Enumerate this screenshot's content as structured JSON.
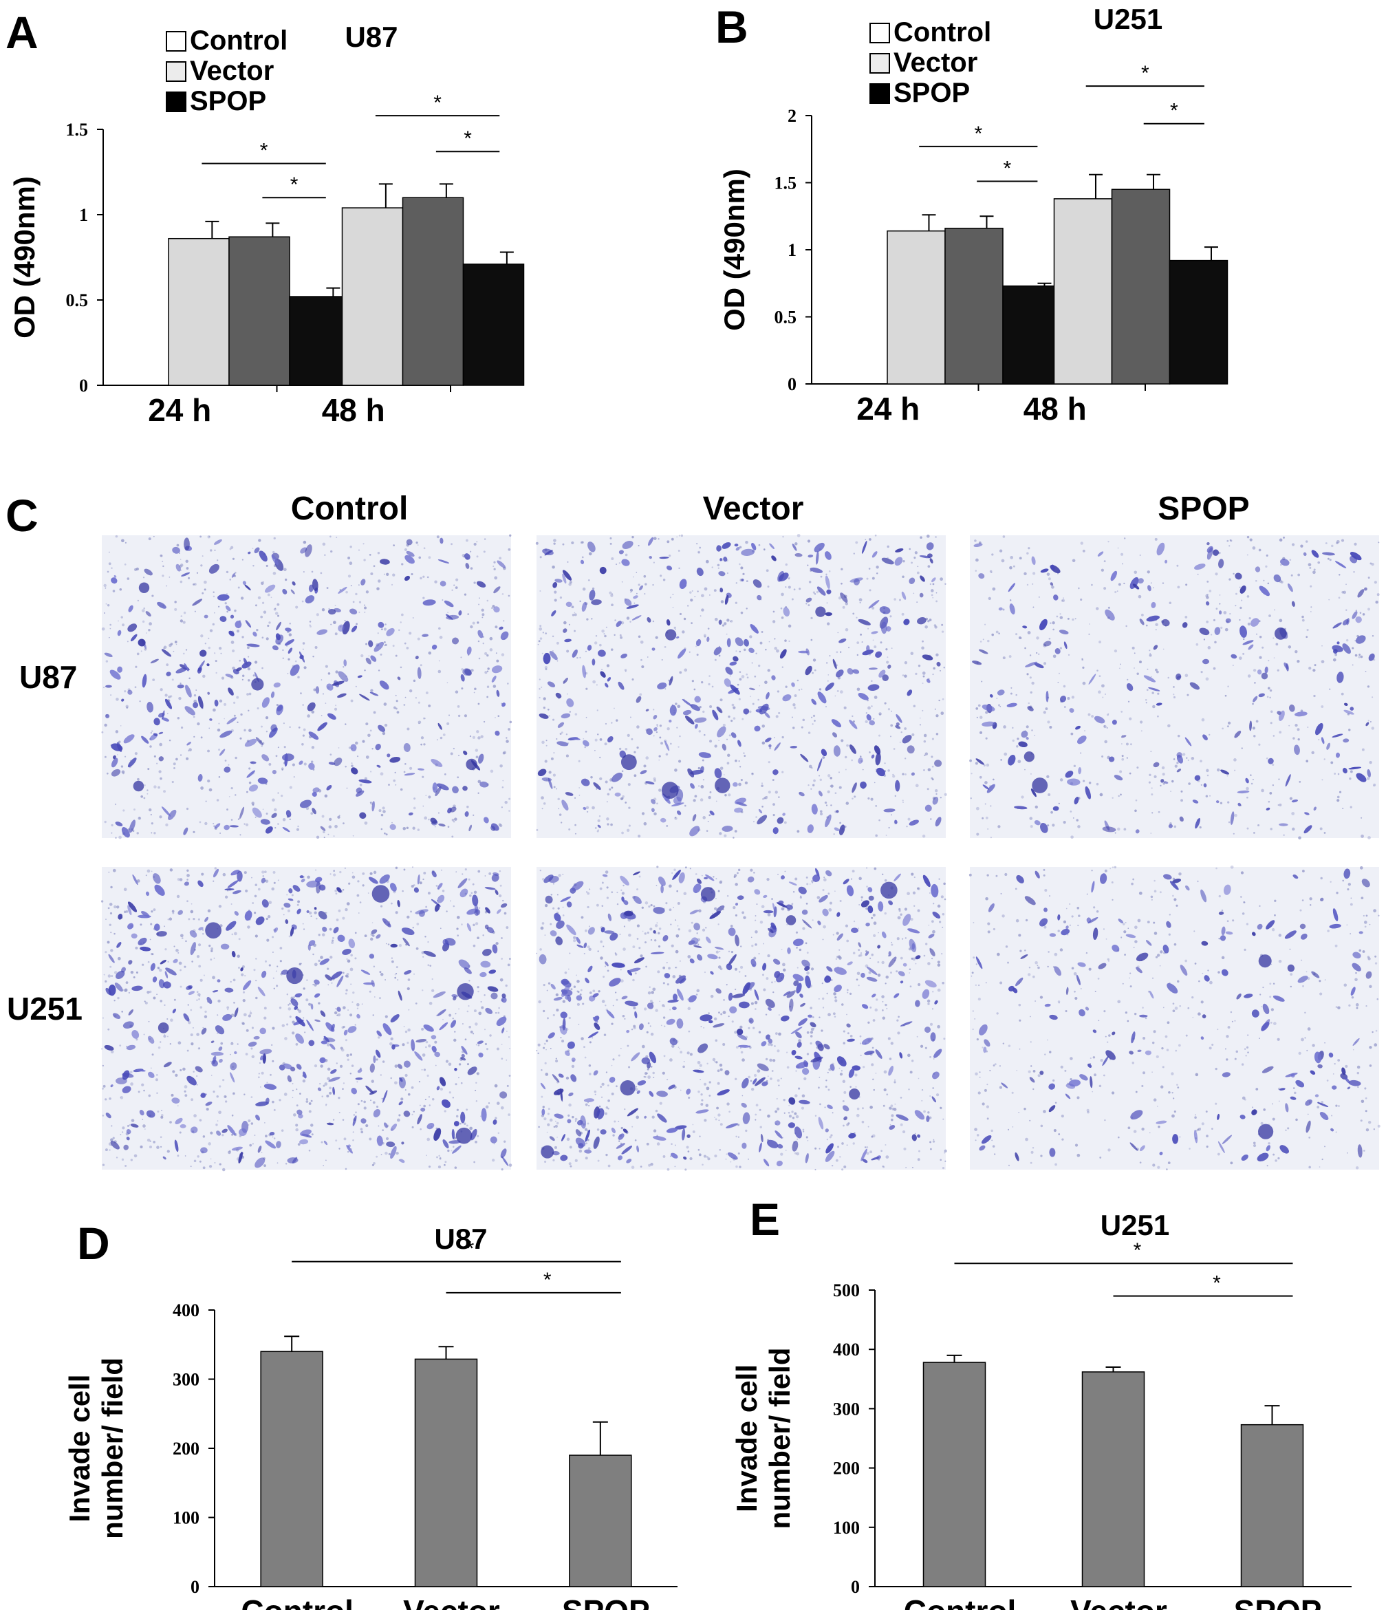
{
  "panel_letters": {
    "A": "A",
    "B": "B",
    "C": "C",
    "D": "D",
    "E": "E"
  },
  "colors": {
    "control": "#d9d9d9",
    "vector": "#5e5e5e",
    "spop": "#0d0d0d",
    "single_bar": "#7f7f7f",
    "stain": "#3d3fb0"
  },
  "legend": {
    "control": "Control",
    "vector": "Vector",
    "spop": "SPOP"
  },
  "significance_mark": "*",
  "micrograph_panel": {
    "column_labels": [
      "Control",
      "Vector",
      "SPOP"
    ],
    "row_labels": [
      "U87",
      "U251"
    ],
    "density": [
      [
        0.7,
        0.75,
        0.45
      ],
      [
        0.95,
        1.0,
        0.35
      ]
    ]
  },
  "chart_data": [
    {
      "panel": "A",
      "type": "bar",
      "title": "U87",
      "ylabel": "OD (490nm)",
      "categories": [
        "24 h",
        "48 h"
      ],
      "ylim": [
        0,
        1.5
      ],
      "yticks": [
        0,
        0.5,
        1,
        1.5
      ],
      "ytick_labels": [
        "0",
        "0.5",
        "1",
        "1.5"
      ],
      "series": [
        {
          "name": "Control",
          "values": [
            0.86,
            1.04
          ],
          "errors": [
            0.1,
            0.14
          ]
        },
        {
          "name": "Vector",
          "values": [
            0.87,
            1.1
          ],
          "errors": [
            0.08,
            0.08
          ]
        },
        {
          "name": "SPOP",
          "values": [
            0.52,
            0.71
          ],
          "errors": [
            0.05,
            0.07
          ]
        }
      ],
      "significance": [
        {
          "category": 0,
          "from": 0,
          "to": 2,
          "y": 1.3
        },
        {
          "category": 0,
          "from": 1,
          "to": 2,
          "y": 1.1
        },
        {
          "category": 1,
          "from": 0,
          "to": 2,
          "y": 1.58
        },
        {
          "category": 1,
          "from": 1,
          "to": 2,
          "y": 1.37
        }
      ]
    },
    {
      "panel": "B",
      "type": "bar",
      "title": "U251",
      "ylabel": "OD (490nm)",
      "categories": [
        "24 h",
        "48 h"
      ],
      "ylim": [
        0,
        2
      ],
      "yticks": [
        0,
        0.5,
        1,
        1.5,
        2
      ],
      "ytick_labels": [
        "0",
        "0.5",
        "1",
        "1.5",
        "2"
      ],
      "series": [
        {
          "name": "Control",
          "values": [
            1.14,
            1.38
          ],
          "errors": [
            0.12,
            0.18
          ]
        },
        {
          "name": "Vector",
          "values": [
            1.16,
            1.45
          ],
          "errors": [
            0.09,
            0.11
          ]
        },
        {
          "name": "SPOP",
          "values": [
            0.73,
            0.92
          ],
          "errors": [
            0.02,
            0.1
          ]
        }
      ],
      "significance": [
        {
          "category": 0,
          "from": 0,
          "to": 2,
          "y": 1.77
        },
        {
          "category": 0,
          "from": 1,
          "to": 2,
          "y": 1.51
        },
        {
          "category": 1,
          "from": 0,
          "to": 2,
          "y": 2.22
        },
        {
          "category": 1,
          "from": 1,
          "to": 2,
          "y": 1.94
        }
      ]
    },
    {
      "panel": "D",
      "type": "bar",
      "title": "U87",
      "ylabel": [
        "Invade cell",
        "number/ field"
      ],
      "categories": [
        "Control",
        "Vector",
        "SPOP"
      ],
      "ylim": [
        0,
        400
      ],
      "yticks": [
        0,
        100,
        200,
        300,
        400
      ],
      "ytick_labels": [
        "0",
        "100",
        "200",
        "300",
        "400"
      ],
      "values": [
        340,
        329,
        190
      ],
      "errors": [
        22,
        18,
        48
      ],
      "significance": [
        {
          "from": 0,
          "to": 2,
          "y": 470
        },
        {
          "from": 1,
          "to": 2,
          "y": 425
        }
      ]
    },
    {
      "panel": "E",
      "type": "bar",
      "title": "U251",
      "ylabel": [
        "Invade cell",
        "number/ field"
      ],
      "categories": [
        "Control",
        "Vector",
        "SPOP"
      ],
      "ylim": [
        0,
        500
      ],
      "yticks": [
        0,
        100,
        200,
        300,
        400,
        500
      ],
      "ytick_labels": [
        "0",
        "100",
        "200",
        "300",
        "400",
        "500"
      ],
      "values": [
        378,
        362,
        273
      ],
      "errors": [
        12,
        8,
        32
      ],
      "significance": [
        {
          "from": 0,
          "to": 2,
          "y": 545
        },
        {
          "from": 1,
          "to": 2,
          "y": 490
        }
      ]
    }
  ]
}
